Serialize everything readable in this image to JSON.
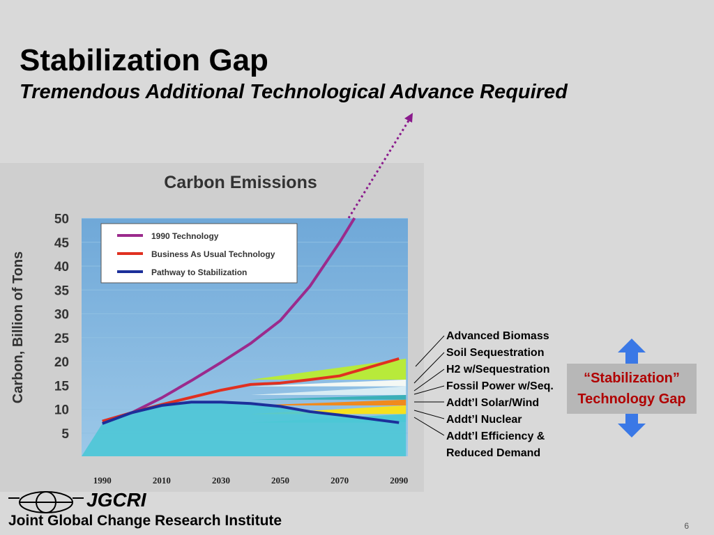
{
  "slide": {
    "title": "Stabilization Gap",
    "subtitle": "Tremendous Additional Technological Advance Required",
    "page_number": "6"
  },
  "chart_data": {
    "type": "area",
    "title": "Carbon Emissions",
    "xlabel": "",
    "ylabel": "Carbon, Billion of Tons",
    "x": [
      1990,
      2000,
      2010,
      2020,
      2030,
      2040,
      2050,
      2060,
      2070,
      2080,
      2090
    ],
    "x_ticks": [
      1990,
      2010,
      2030,
      2050,
      2070,
      2090
    ],
    "y_ticks": [
      5,
      10,
      15,
      20,
      25,
      30,
      35,
      40,
      45,
      50
    ],
    "xlim": [
      1983,
      2093
    ],
    "ylim": [
      0,
      50
    ],
    "legend_position": "top-left",
    "series": [
      {
        "name": "1990 Technology",
        "color": "#9b2a8c",
        "values": [
          7.5,
          9.3,
          12.4,
          16.0,
          19.8,
          23.8,
          28.6,
          35.8,
          45.0,
          55.0,
          null
        ]
      },
      {
        "name": "Business As Usual Technology",
        "color": "#e03020",
        "values": [
          7.5,
          9.3,
          11.0,
          12.5,
          14.0,
          15.2,
          15.5,
          16.2,
          17.0,
          18.8,
          20.6
        ]
      },
      {
        "name": "Pathway to Stabilization",
        "color": "#1c2f9a",
        "values": [
          7.0,
          9.3,
          10.8,
          11.5,
          11.5,
          11.2,
          10.6,
          9.5,
          8.8,
          8.0,
          7.2
        ]
      }
    ],
    "wedges": [
      {
        "name": "Advanced Biomass",
        "color": "#b8ea3a",
        "base": 16.2,
        "top": 20.6
      },
      {
        "name": "Soil Sequestration",
        "color": "#f4f8f4",
        "base": 14.8,
        "top": 16.2
      },
      {
        "name": "H2 w/Sequestration",
        "color": "#d8ecf4",
        "base": 13.0,
        "top": 14.8
      },
      {
        "name": "Fossil Power w/Seq.",
        "color": "#3ab0b8",
        "base": 12.0,
        "top": 13.0
      },
      {
        "name": "Addt'l Solar/Wind",
        "color": "#f08a1e",
        "base": 10.8,
        "top": 12.0
      },
      {
        "name": "Addt'l Nuclear",
        "color": "#f6e01e",
        "base": 9.0,
        "top": 10.8
      },
      {
        "name": "Addt'l Efficiency & Reduced Demand",
        "color": "#4cc7d6",
        "base": 7.2,
        "top": 9.0
      }
    ]
  },
  "annotations": {
    "wedge_labels": [
      "Advanced Biomass",
      "Soil Sequestration",
      "H2 w/Sequestration",
      "Fossil Power w/Seq.",
      "Addt’l Solar/Wind",
      "Addt’l Nuclear",
      "Addt’l Efficiency &",
      "Reduced Demand"
    ],
    "gap_label_line1": "“Stabilization”",
    "gap_label_line2": "Technology Gap"
  },
  "footer": {
    "logo_text": "JGCRI",
    "org_name": "Joint Global Change Research Institute"
  },
  "colors": {
    "background": "#d9d9d9",
    "plot_background": "#7fb3dd",
    "arrow_blue": "#3a78e6",
    "gap_text": "#b00000"
  }
}
